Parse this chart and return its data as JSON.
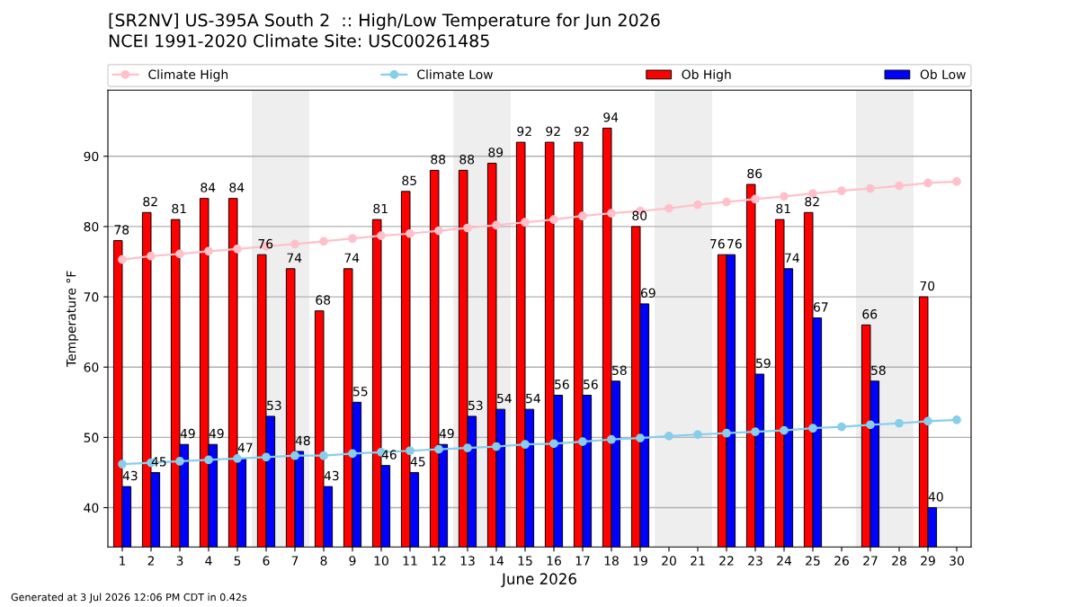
{
  "chart_data": {
    "type": "bar",
    "title": "[SR2NV] US-395A South 2  :: High/Low Temperature for Jun 2026",
    "subtitle": "NCEI 1991-2020 Climate Site: USC00261485",
    "xlabel": "June 2026",
    "ylabel": "Temperature °F",
    "x": [
      1,
      2,
      3,
      4,
      5,
      6,
      7,
      8,
      9,
      10,
      11,
      12,
      13,
      14,
      15,
      16,
      17,
      18,
      19,
      20,
      21,
      22,
      23,
      24,
      25,
      26,
      27,
      28,
      29,
      30
    ],
    "xlim": [
      0.5,
      30.5
    ],
    "xticks": [
      1,
      2,
      3,
      4,
      5,
      6,
      7,
      8,
      9,
      10,
      11,
      12,
      13,
      14,
      15,
      16,
      17,
      18,
      19,
      20,
      21,
      22,
      23,
      24,
      25,
      26,
      27,
      28,
      29,
      30
    ],
    "ylim": [
      34.4,
      99.4
    ],
    "yticks": [
      40,
      50,
      60,
      70,
      80,
      90
    ],
    "grid": "y",
    "legend": "top",
    "bands": [
      {
        "axis": "x",
        "from": 5.5,
        "to": 7.5,
        "color": "#eeeeee"
      },
      {
        "axis": "x",
        "from": 12.5,
        "to": 14.5,
        "color": "#eeeeee"
      },
      {
        "axis": "x",
        "from": 19.5,
        "to": 21.5,
        "color": "#eeeeee"
      },
      {
        "axis": "x",
        "from": 26.5,
        "to": 28.5,
        "color": "#eeeeee"
      }
    ],
    "series": [
      {
        "name": "Climate High",
        "type": "line",
        "color": "#ffc0cb",
        "marker": "circle",
        "line_style": "solid",
        "values": [
          75.3,
          75.8,
          76.1,
          76.5,
          76.8,
          77.2,
          77.5,
          77.9,
          78.3,
          78.7,
          79.0,
          79.4,
          79.8,
          80.2,
          80.6,
          81.0,
          81.5,
          81.9,
          82.2,
          82.6,
          83.1,
          83.5,
          83.9,
          84.3,
          84.7,
          85.1,
          85.4,
          85.8,
          86.2,
          86.4
        ]
      },
      {
        "name": "Climate Low",
        "type": "line",
        "color": "#87ceeb",
        "marker": "circle",
        "line_style": "solid",
        "values": [
          46.2,
          46.4,
          46.6,
          46.8,
          47.0,
          47.2,
          47.4,
          47.4,
          47.7,
          47.9,
          48.1,
          48.3,
          48.5,
          48.7,
          49.0,
          49.1,
          49.4,
          49.7,
          49.9,
          50.2,
          50.4,
          50.6,
          50.8,
          51.0,
          51.3,
          51.5,
          51.8,
          52.0,
          52.3,
          52.5
        ]
      },
      {
        "name": "Ob High",
        "color": "#ff0000",
        "values": [
          78,
          82,
          81,
          84,
          84,
          76,
          74,
          68,
          74,
          81,
          85,
          88,
          88,
          89,
          92,
          92,
          92,
          94,
          80,
          null,
          null,
          76,
          86,
          81,
          82,
          null,
          66,
          null,
          70,
          null
        ],
        "value_labels": [
          "78",
          "82",
          "81",
          "84",
          "84",
          "76",
          "74",
          "68",
          "74",
          "81",
          "85",
          "88",
          "88",
          "89",
          "92",
          "92",
          "92",
          "94",
          "80",
          null,
          null,
          "76",
          "86",
          "81",
          "82",
          null,
          "66",
          null,
          "70",
          null
        ]
      },
      {
        "name": "Ob Low",
        "color": "#0000ff",
        "values": [
          43,
          45,
          49,
          49,
          47,
          53,
          48,
          43,
          55,
          46,
          45,
          49,
          53,
          54,
          54,
          56,
          56,
          58,
          69,
          null,
          null,
          76,
          59,
          74,
          67,
          null,
          58,
          null,
          40,
          null
        ],
        "value_labels": [
          "43",
          "45",
          "49",
          "49",
          "47",
          "53",
          "48",
          "43",
          "55",
          "46",
          "45",
          "49",
          "53",
          "54",
          "54",
          "56",
          "56",
          "58",
          "69",
          null,
          null,
          "76",
          "59",
          "74",
          "67",
          null,
          "58",
          null,
          "40",
          null
        ]
      }
    ],
    "annotations": [
      "Generated at 3 Jul 2026 12:06 PM CDT in 0.42s"
    ]
  }
}
